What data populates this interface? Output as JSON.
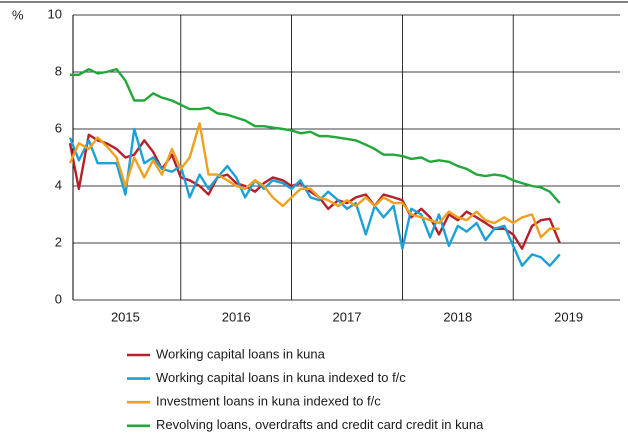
{
  "chart_data": {
    "type": "line",
    "y_label": "%",
    "x": [
      2015,
      2015.08,
      2015.17,
      2015.25,
      2015.33,
      2015.42,
      2015.5,
      2015.58,
      2015.67,
      2015.75,
      2015.83,
      2015.92,
      2016,
      2016.08,
      2016.17,
      2016.25,
      2016.33,
      2016.42,
      2016.5,
      2016.58,
      2016.67,
      2016.75,
      2016.83,
      2016.92,
      2017,
      2017.08,
      2017.17,
      2017.25,
      2017.33,
      2017.42,
      2017.5,
      2017.58,
      2017.67,
      2017.75,
      2017.83,
      2017.92,
      2018,
      2018.08,
      2018.17,
      2018.25,
      2018.33,
      2018.42,
      2018.5,
      2018.58,
      2018.67,
      2018.75,
      2018.83,
      2018.92,
      2019,
      2019.08,
      2019.17,
      2019.25,
      2019.33,
      2019.42
    ],
    "series": [
      {
        "name": "Working capital loans in kuna",
        "color": "#b5202a",
        "values": [
          5.5,
          3.9,
          5.8,
          5.6,
          5.5,
          5.3,
          5.0,
          5.1,
          5.6,
          5.2,
          4.6,
          5.1,
          4.3,
          4.2,
          4.0,
          3.7,
          4.3,
          4.4,
          4.1,
          4.0,
          3.8,
          4.1,
          4.3,
          4.2,
          4.0,
          4.1,
          3.8,
          3.6,
          3.2,
          3.5,
          3.4,
          3.6,
          3.7,
          3.3,
          3.7,
          3.6,
          3.5,
          2.9,
          3.2,
          2.9,
          2.3,
          3.0,
          2.8,
          3.1,
          2.9,
          2.7,
          2.5,
          2.5,
          2.3,
          1.8,
          2.6,
          2.8,
          2.85,
          2.0
        ]
      },
      {
        "name": "Working capital loans in kuna indexed to f/c",
        "color": "#1ba1d9",
        "values": [
          5.7,
          4.9,
          5.6,
          4.8,
          4.8,
          4.8,
          3.7,
          6.0,
          4.8,
          5.0,
          4.6,
          4.5,
          4.7,
          3.6,
          4.4,
          3.9,
          4.3,
          4.7,
          4.3,
          3.6,
          4.2,
          3.9,
          4.2,
          4.1,
          3.9,
          4.2,
          3.6,
          3.5,
          3.8,
          3.5,
          3.2,
          3.4,
          2.3,
          3.3,
          2.9,
          3.3,
          1.8,
          3.2,
          3.0,
          2.2,
          3.0,
          1.9,
          2.6,
          2.4,
          2.7,
          2.1,
          2.5,
          2.6,
          1.9,
          1.2,
          1.6,
          1.5,
          1.2,
          1.6
        ]
      },
      {
        "name": "Investment loans in kuna indexed to f/c",
        "color": "#f0a01e",
        "values": [
          4.8,
          5.5,
          5.3,
          5.7,
          5.4,
          5.0,
          4.0,
          5.0,
          4.3,
          4.9,
          4.4,
          5.3,
          4.6,
          5.0,
          6.2,
          4.4,
          4.4,
          4.2,
          4.0,
          3.9,
          4.2,
          4.0,
          3.6,
          3.3,
          3.6,
          3.9,
          3.9,
          3.6,
          3.5,
          3.3,
          3.5,
          3.3,
          3.6,
          3.3,
          3.6,
          3.4,
          3.4,
          3.0,
          2.9,
          2.8,
          2.7,
          3.1,
          2.9,
          2.8,
          3.1,
          2.8,
          2.7,
          2.9,
          2.7,
          2.9,
          3.0,
          2.2,
          2.5,
          2.5
        ]
      },
      {
        "name": "Revolving loans, overdrafts and credit card credit in kuna",
        "color": "#22a83a",
        "values": [
          7.9,
          7.9,
          8.1,
          7.95,
          8.0,
          8.1,
          7.7,
          7.0,
          7.0,
          7.25,
          7.1,
          7.0,
          6.85,
          6.7,
          6.7,
          6.75,
          6.55,
          6.5,
          6.4,
          6.3,
          6.1,
          6.1,
          6.05,
          6.0,
          5.95,
          5.85,
          5.9,
          5.75,
          5.75,
          5.7,
          5.65,
          5.6,
          5.45,
          5.3,
          5.1,
          5.1,
          5.05,
          4.95,
          5.0,
          4.85,
          4.9,
          4.85,
          4.7,
          4.6,
          4.4,
          4.35,
          4.4,
          4.35,
          4.2,
          4.1,
          4.0,
          3.95,
          3.8,
          3.4
        ]
      }
    ],
    "xlim": [
      2015,
      2020
    ],
    "xticks": [
      2015,
      2016,
      2017,
      2018,
      2019
    ],
    "ylim": [
      0,
      10
    ],
    "yticks": [
      0,
      2,
      4,
      6,
      8,
      10
    ],
    "grid": true,
    "legend": "bottom"
  }
}
